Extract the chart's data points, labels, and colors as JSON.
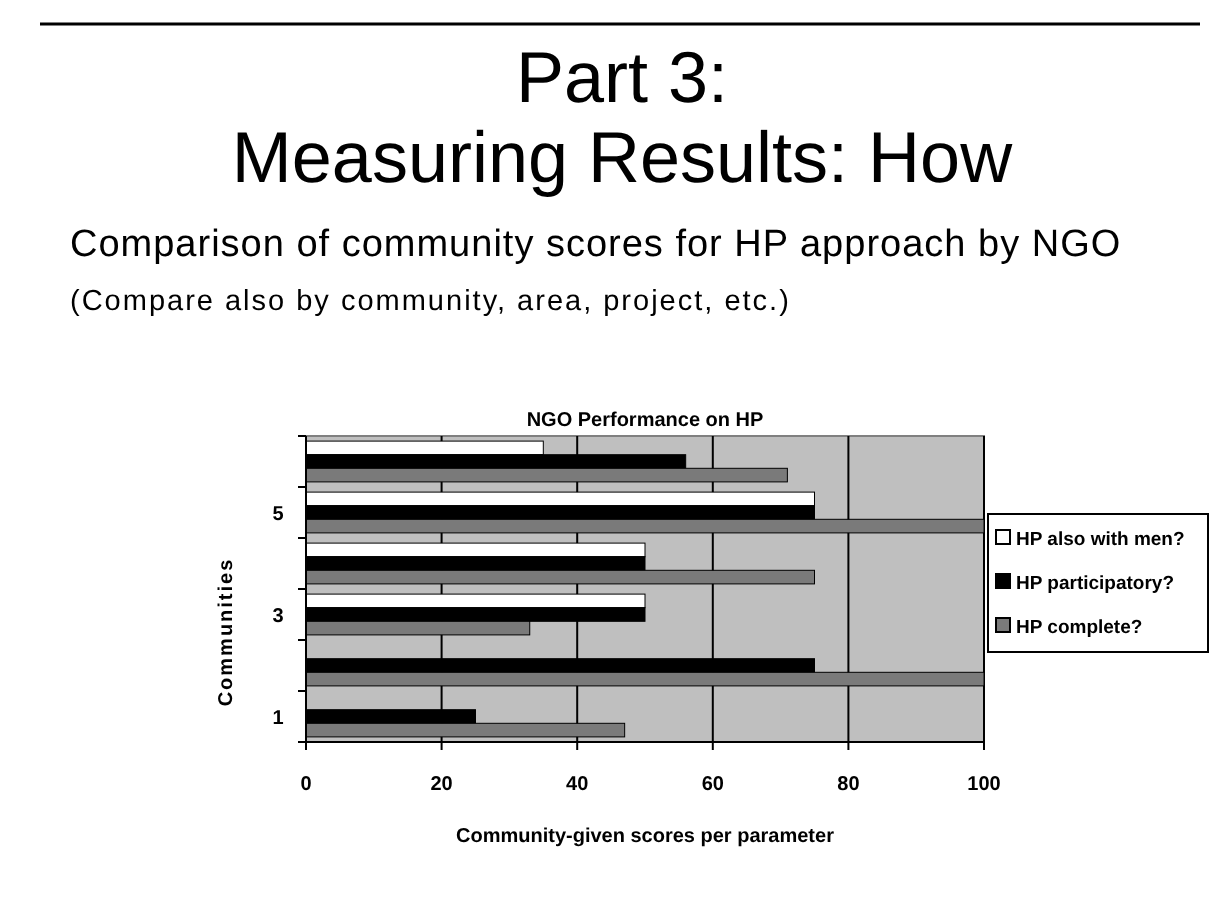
{
  "chart_data": {
    "type": "bar",
    "orientation": "horizontal",
    "title": "NGO Performance on HP",
    "subtitle": "Comparison of community scores for HP approach by NGO",
    "annotations": [
      "Part 3:",
      "Measuring Results: How",
      "(Compare also by community, area, project, etc.)"
    ],
    "xlabel": "Community-given scores per parameter",
    "ylabel": "Communities",
    "categories": [
      null,
      "5",
      null,
      "3",
      null,
      "1"
    ],
    "series": [
      {
        "name": "HP also with men?",
        "color": "#ffffff",
        "values": [
          35,
          75,
          50,
          50,
          0,
          0
        ]
      },
      {
        "name": "HP participatory?",
        "color": "#000000",
        "values": [
          56,
          75,
          50,
          50,
          75,
          25
        ]
      },
      {
        "name": "HP complete?",
        "color": "#7a7a7a",
        "values": [
          71,
          100,
          75,
          33,
          100,
          47
        ]
      }
    ],
    "xlim": [
      0,
      100
    ],
    "xticks": [
      0,
      20,
      40,
      60,
      80,
      100
    ],
    "grid": "x",
    "legend": "right"
  }
}
